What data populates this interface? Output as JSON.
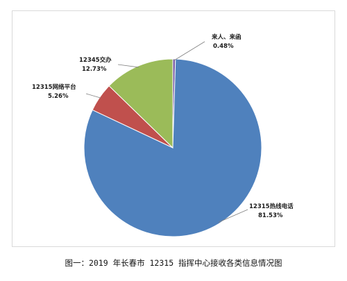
{
  "caption": "图一：2019 年长春市 12315 指挥中心接收各类信息情况图",
  "chart_data": {
    "type": "pie",
    "slices": [
      {
        "name": "来人、来函",
        "value": 0.48,
        "value_label": "0.48%",
        "color": "#7b5ea6"
      },
      {
        "name": "12315热线电话",
        "value": 81.53,
        "value_label": "81.53%",
        "color": "#4f81bd"
      },
      {
        "name": "12315网络平台",
        "value": 5.26,
        "value_label": "5.26%",
        "color": "#c0504d"
      },
      {
        "name": "12345交办",
        "value": 12.73,
        "value_label": "12.73%",
        "color": "#9bbb59"
      }
    ],
    "start": "12 o'clock",
    "direction": "clockwise",
    "legend": "none"
  }
}
